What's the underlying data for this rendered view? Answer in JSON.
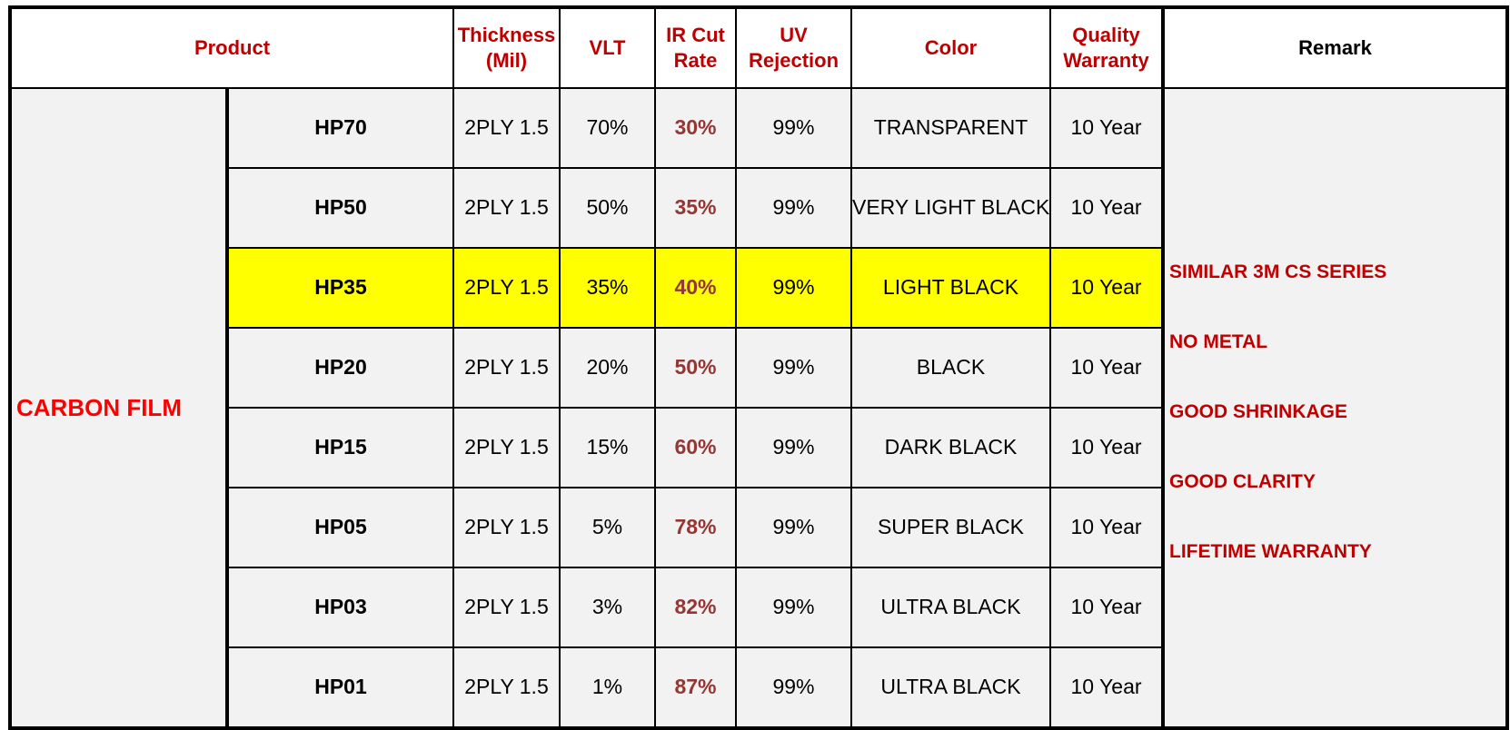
{
  "headers": {
    "product": "Product",
    "thickness": [
      "Thickness",
      "(Mil)"
    ],
    "vlt": "VLT",
    "ir": [
      "IR Cut",
      "Rate"
    ],
    "uv": [
      "UV",
      "Rejection"
    ],
    "color": "Color",
    "warranty": [
      "Quality",
      "Warranty"
    ],
    "remark": "Remark"
  },
  "group_label": "CARBON FILM",
  "rows": [
    {
      "model": "HP70",
      "thickness": "2PLY 1.5",
      "vlt": "70%",
      "ir": "30%",
      "uv": "99%",
      "color": "TRANSPARENT",
      "warranty": "10 Year"
    },
    {
      "model": "HP50",
      "thickness": "2PLY 1.5",
      "vlt": "50%",
      "ir": "35%",
      "uv": "99%",
      "color": "VERY LIGHT BLACK",
      "warranty": "10 Year"
    },
    {
      "model": "HP35",
      "thickness": "2PLY 1.5",
      "vlt": "35%",
      "ir": "40%",
      "uv": "99%",
      "color": "LIGHT BLACK",
      "warranty": "10 Year",
      "highlighted": true
    },
    {
      "model": "HP20",
      "thickness": "2PLY 1.5",
      "vlt": "20%",
      "ir": "50%",
      "uv": "99%",
      "color": "BLACK",
      "warranty": "10 Year"
    },
    {
      "model": "HP15",
      "thickness": "2PLY 1.5",
      "vlt": "15%",
      "ir": "60%",
      "uv": "99%",
      "color": "DARK BLACK",
      "warranty": "10 Year"
    },
    {
      "model": "HP05",
      "thickness": "2PLY 1.5",
      "vlt": "5%",
      "ir": "78%",
      "uv": "99%",
      "color": "SUPER BLACK",
      "warranty": "10 Year"
    },
    {
      "model": "HP03",
      "thickness": "2PLY 1.5",
      "vlt": "3%",
      "ir": "82%",
      "uv": "99%",
      "color": "ULTRA BLACK",
      "warranty": "10 Year"
    },
    {
      "model": "HP01",
      "thickness": "2PLY 1.5",
      "vlt": "1%",
      "ir": "87%",
      "uv": "99%",
      "color": "ULTRA BLACK",
      "warranty": "10 Year"
    }
  ],
  "remarks": [
    "",
    "SIMILAR 3M CS SERIES",
    "NO METAL",
    "GOOD SHRINKAGE",
    "GOOD CLARITY",
    "LIFETIME WARRANTY",
    "",
    ""
  ],
  "colors": {
    "header_red": "#c00000",
    "group_red": "#ff0000",
    "ir_brown": "#943634",
    "highlight": "#ffff00",
    "cell_gray": "#f2f2f2"
  }
}
